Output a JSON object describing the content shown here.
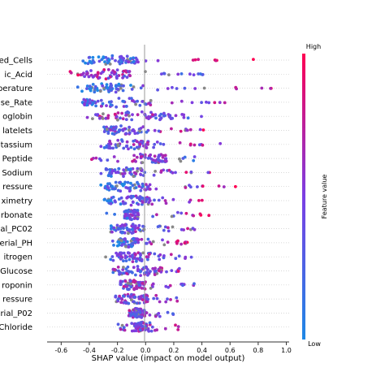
{
  "chart_data": {
    "type": "scatter",
    "subtype": "shap-beeswarm",
    "xlabel": "SHAP value (impact on model output)",
    "xlim": [
      -0.7,
      1.02
    ],
    "xticks": [
      "-0.6",
      "-0.4",
      "-0.2",
      "0.0",
      "0.2",
      "0.4",
      "0.6",
      "0.8",
      "1.0"
    ],
    "tick_values": [
      -0.6,
      -0.4,
      -0.2,
      0.0,
      0.2,
      0.4,
      0.6,
      0.8,
      1.0
    ],
    "colorbar": {
      "high": "High",
      "low": "Low",
      "label": "Feature value",
      "color_low": "#1e88e5",
      "color_high": "#ff0052"
    },
    "features": [
      {
        "label": "ed_Cells",
        "xmin": -0.62,
        "xmax": 0.8,
        "core": [
          -0.45,
          -0.05
        ],
        "bias": 0.8
      },
      {
        "label": "ic_Acid",
        "xmin": -0.6,
        "xmax": 0.52,
        "core": [
          -0.45,
          -0.1
        ],
        "bias": -0.3
      },
      {
        "label": "perature",
        "xmin": -0.5,
        "xmax": 0.95,
        "core": [
          -0.42,
          -0.15
        ],
        "bias": 0.6
      },
      {
        "label": "se_Rate",
        "xmin": -0.52,
        "xmax": 0.62,
        "core": [
          -0.45,
          0.05
        ],
        "bias": 0.3
      },
      {
        "label": "oglobin",
        "xmin": -0.42,
        "xmax": 0.45,
        "core": [
          -0.35,
          0.2
        ],
        "bias": -0.2
      },
      {
        "label": "latelets",
        "xmin": -0.35,
        "xmax": 0.42,
        "core": [
          -0.3,
          0.0
        ],
        "bias": 0.3
      },
      {
        "label": "tassium",
        "xmin": -0.33,
        "xmax": 0.55,
        "core": [
          -0.28,
          0.02
        ],
        "bias": 0.2
      },
      {
        "label": "Peptide",
        "xmin": -0.45,
        "xmax": 0.42,
        "core": [
          -0.1,
          0.15
        ],
        "bias": -0.2
      },
      {
        "label": "Sodium",
        "xmin": -0.32,
        "xmax": 0.5,
        "core": [
          -0.3,
          -0.02
        ],
        "bias": 0.3
      },
      {
        "label": "ressure",
        "xmin": -0.32,
        "xmax": 0.72,
        "core": [
          -0.3,
          0.03
        ],
        "bias": 0.5
      },
      {
        "label": "ximetry",
        "xmin": -0.3,
        "xmax": 0.45,
        "core": [
          -0.3,
          0.08
        ],
        "bias": 0.4
      },
      {
        "label": "rbonate",
        "xmin": -0.3,
        "xmax": 0.45,
        "core": [
          -0.15,
          -0.05
        ],
        "bias": 0.3
      },
      {
        "label": "al_PC02",
        "xmin": -0.3,
        "xmax": 0.42,
        "core": [
          -0.25,
          0.0
        ],
        "bias": 0.3
      },
      {
        "label": "erial_PH",
        "xmin": -0.25,
        "xmax": 0.32,
        "core": [
          -0.2,
          -0.05
        ],
        "bias": 0.5
      },
      {
        "label": "itrogen",
        "xmin": -0.3,
        "xmax": 0.35,
        "core": [
          -0.25,
          0.05
        ],
        "bias": 0.2
      },
      {
        "label": "Glucose",
        "xmin": -0.25,
        "xmax": 0.25,
        "core": [
          -0.22,
          0.12
        ],
        "bias": 0.1
      },
      {
        "label": "roponin",
        "xmin": -0.22,
        "xmax": 0.35,
        "core": [
          -0.18,
          0.0
        ],
        "bias": 0.0
      },
      {
        "label": "ressure",
        "xmin": -0.22,
        "xmax": 0.25,
        "core": [
          -0.2,
          0.02
        ],
        "bias": 0.1
      },
      {
        "label": "rial_P02",
        "xmin": -0.15,
        "xmax": 0.2,
        "core": [
          -0.12,
          0.0
        ],
        "bias": 0.0
      },
      {
        "label": "Chloride",
        "xmin": -0.2,
        "xmax": 0.25,
        "core": [
          -0.1,
          0.05
        ],
        "bias": 0.1
      }
    ]
  }
}
